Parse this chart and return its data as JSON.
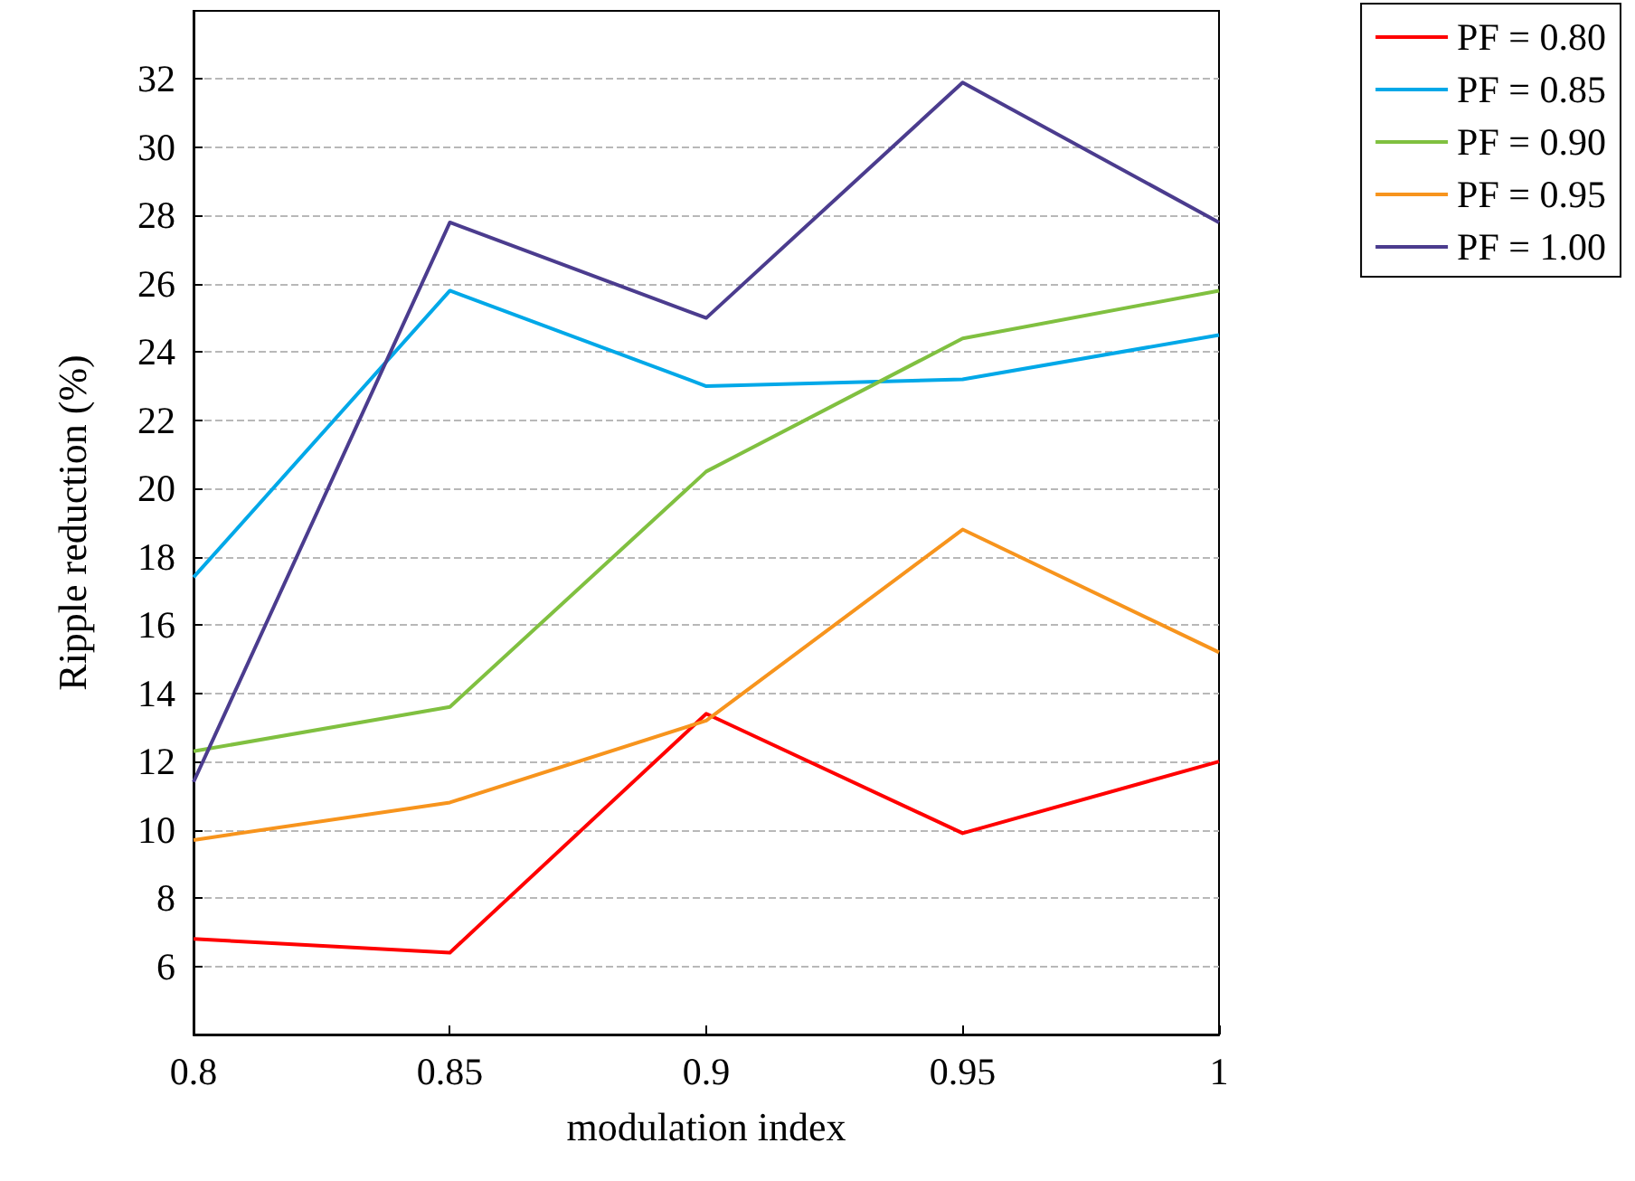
{
  "chart_data": {
    "type": "line",
    "xlabel": "modulation index",
    "ylabel": "Ripple reduction (%)",
    "x": [
      0.8,
      0.85,
      0.9,
      0.95,
      1
    ],
    "xlim": [
      0.8,
      1
    ],
    "xticks": [
      0.8,
      0.85,
      0.9,
      0.95,
      1
    ],
    "ylim": [
      4,
      34
    ],
    "yticks": [
      6,
      8,
      10,
      12,
      14,
      16,
      18,
      20,
      22,
      24,
      26,
      28,
      30,
      32
    ],
    "grid": "y",
    "legend": "top right",
    "marker": "none",
    "line_style": "solid",
    "series": [
      {
        "name": "PF = 0.80",
        "color": "#ff0000",
        "values": [
          6.8,
          6.4,
          13.4,
          9.9,
          12.0
        ]
      },
      {
        "name": "PF = 0.85",
        "color": "#00a8e8",
        "values": [
          17.4,
          25.8,
          23.0,
          23.2,
          24.5
        ]
      },
      {
        "name": "PF = 0.90",
        "color": "#80c040",
        "values": [
          12.3,
          13.6,
          20.5,
          24.4,
          25.8
        ]
      },
      {
        "name": "PF = 0.95",
        "color": "#f7941d",
        "values": [
          9.7,
          10.8,
          13.2,
          18.8,
          15.2
        ]
      },
      {
        "name": "PF = 1.00",
        "color": "#4b3c8e",
        "values": [
          11.4,
          27.8,
          25.0,
          31.9,
          27.8
        ]
      }
    ]
  }
}
